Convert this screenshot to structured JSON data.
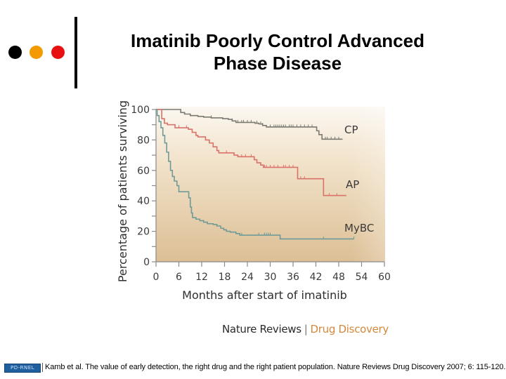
{
  "slide": {
    "title": "Imatinib Poorly Control Advanced Phase Disease",
    "title_line1": "Imatinib Poorly Control Advanced",
    "title_line2": "Phase Disease",
    "bullet_dots": [
      {
        "name": "black-dot",
        "color": "#000000"
      },
      {
        "name": "orange-dot",
        "color": "#f39a00"
      },
      {
        "name": "red-dot",
        "color": "#e81010"
      }
    ],
    "journal": {
      "name": "Nature Reviews",
      "separator": "|",
      "section": "Drug Discovery"
    },
    "logo_text": "PD-RNEL",
    "citation": "Kamb et al. The value of early detection, the right drug and the right patient population. Nature Reviews Drug Discovery 2007; 6: 115-120."
  },
  "chart_data": {
    "type": "line",
    "subtype": "kaplan-meier-step",
    "title": "",
    "xlabel": "Months after start of imatinib",
    "ylabel": "Percentage of patients surviving",
    "xlim": [
      0,
      60
    ],
    "ylim": [
      0,
      100
    ],
    "xticks": [
      0,
      6,
      12,
      18,
      24,
      30,
      36,
      42,
      48,
      54,
      60
    ],
    "yticks": [
      0,
      20,
      40,
      60,
      80,
      100
    ],
    "y_minor_ticks": [
      10,
      30,
      50,
      70,
      90
    ],
    "grid": false,
    "legend": "inline-right-of-curves",
    "series": [
      {
        "name": "CP",
        "color": "#7a7a72",
        "steps": [
          [
            0,
            100
          ],
          [
            5.5,
            100
          ],
          [
            6.5,
            98
          ],
          [
            7.5,
            97
          ],
          [
            9,
            96
          ],
          [
            11,
            95.5
          ],
          [
            12.5,
            95
          ],
          [
            14.5,
            94.5
          ],
          [
            17.5,
            94
          ],
          [
            19,
            93.5
          ],
          [
            20,
            92.5
          ],
          [
            21,
            91.5
          ],
          [
            26,
            91
          ],
          [
            27,
            90.5
          ],
          [
            28,
            89.5
          ],
          [
            29,
            88.5
          ],
          [
            41.5,
            88.5
          ],
          [
            42.2,
            86
          ],
          [
            42.8,
            83.5
          ],
          [
            43.6,
            80.5
          ],
          [
            49,
            80.5
          ]
        ],
        "censor_marks": [
          14.5,
          20,
          21.5,
          22.5,
          23,
          24,
          25,
          26.5,
          27.5,
          28,
          30,
          31,
          31.5,
          32,
          32.5,
          33,
          33.5,
          34,
          35,
          35.5,
          36,
          37,
          38,
          39,
          40,
          41,
          44.5,
          45,
          46,
          47,
          48
        ]
      },
      {
        "name": "AP",
        "color": "#d9736a",
        "steps": [
          [
            0,
            100
          ],
          [
            1,
            100
          ],
          [
            1.5,
            94
          ],
          [
            2.2,
            91
          ],
          [
            3,
            90
          ],
          [
            5,
            88
          ],
          [
            8.5,
            87
          ],
          [
            9.5,
            85
          ],
          [
            10.5,
            83
          ],
          [
            11,
            82
          ],
          [
            13,
            80
          ],
          [
            14,
            78
          ],
          [
            15,
            75.5
          ],
          [
            16,
            73
          ],
          [
            16.5,
            71.5
          ],
          [
            20,
            71.5
          ],
          [
            20.5,
            70
          ],
          [
            21.5,
            69
          ],
          [
            25,
            69
          ],
          [
            25.8,
            67
          ],
          [
            26.5,
            65
          ],
          [
            27.5,
            63.5
          ],
          [
            28.2,
            62
          ],
          [
            37,
            62
          ],
          [
            37.2,
            54.5
          ],
          [
            43.8,
            54.5
          ],
          [
            44,
            43.5
          ],
          [
            50,
            43.5
          ]
        ],
        "censor_marks": [
          6,
          8,
          9.5,
          18.5,
          22.5,
          23.5,
          25,
          28.5,
          29,
          30,
          31,
          32,
          33.5,
          34,
          35,
          36,
          38,
          39,
          45.5,
          47.5
        ]
      },
      {
        "name": "MyBC",
        "color": "#6f9a98",
        "steps": [
          [
            0,
            100
          ],
          [
            0.3,
            96
          ],
          [
            0.8,
            92
          ],
          [
            1.3,
            88
          ],
          [
            1.8,
            83
          ],
          [
            2.3,
            78
          ],
          [
            2.8,
            72
          ],
          [
            3.3,
            66
          ],
          [
            3.8,
            60
          ],
          [
            4.3,
            56
          ],
          [
            4.8,
            53
          ],
          [
            5.5,
            50
          ],
          [
            6,
            46
          ],
          [
            8.2,
            46
          ],
          [
            8.6,
            42
          ],
          [
            9,
            36
          ],
          [
            9.3,
            32
          ],
          [
            9.6,
            29
          ],
          [
            10.5,
            28
          ],
          [
            11.5,
            27
          ],
          [
            12.5,
            26
          ],
          [
            13.5,
            25
          ],
          [
            15,
            24.5
          ],
          [
            16,
            23.5
          ],
          [
            17,
            22
          ],
          [
            17.8,
            21
          ],
          [
            18.5,
            20
          ],
          [
            19.5,
            19.5
          ],
          [
            21,
            18.5
          ],
          [
            22,
            17.5
          ],
          [
            32.5,
            17.5
          ],
          [
            32.6,
            15
          ],
          [
            52,
            15
          ]
        ],
        "censor_marks": [
          22.5,
          27,
          28.5,
          29,
          29.5,
          30,
          44,
          52
        ]
      }
    ],
    "source": "Nature Reviews | Drug Discovery"
  }
}
